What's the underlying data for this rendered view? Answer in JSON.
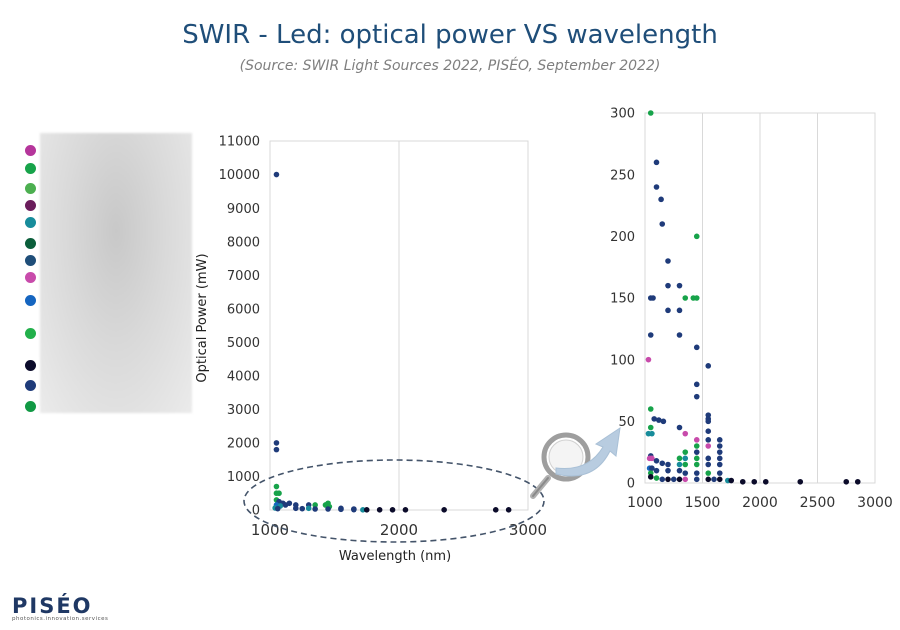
{
  "header": {
    "title": "SWIR - Led: optical power VS wavelength",
    "subtitle": "(Source: SWIR Light Sources 2022, PISÉO, September 2022)"
  },
  "logo": {
    "name": "PISÉO",
    "tagline": "photonics.innovation.services"
  },
  "legend_colors": [
    "#b5359b",
    "#17a34a",
    "#4caf50",
    "#6b1d5c",
    "#178c9b",
    "#0b5e3b",
    "#1f4e79",
    "#c84bab",
    "#1565c0",
    "#22b04b",
    "#0b0b2a",
    "#1f3b7a",
    "#119944"
  ],
  "chart_data": [
    {
      "type": "scatter",
      "title": "",
      "xlabel": "Wavelength (nm)",
      "ylabel": "Optical Power (mW)",
      "xlim": [
        1000,
        3000
      ],
      "ylim": [
        0,
        11000
      ],
      "x_ticks": [
        "1000",
        "2000",
        "3000"
      ],
      "y_ticks": [
        "0",
        "1000",
        "2000",
        "3000",
        "4000",
        "5000",
        "6000",
        "7000",
        "8000",
        "9000",
        "10000",
        "11000"
      ],
      "grid": "vertical",
      "points": [
        {
          "x": 1050,
          "y": 10000,
          "c": "#1f3b7a"
        },
        {
          "x": 1050,
          "y": 2000,
          "c": "#1f3b7a"
        },
        {
          "x": 1050,
          "y": 1800,
          "c": "#1f3b7a"
        },
        {
          "x": 1050,
          "y": 700,
          "c": "#17a34a"
        },
        {
          "x": 1050,
          "y": 500,
          "c": "#17a34a"
        },
        {
          "x": 1070,
          "y": 500,
          "c": "#17a34a"
        },
        {
          "x": 1050,
          "y": 300,
          "c": "#17a34a"
        },
        {
          "x": 1070,
          "y": 250,
          "c": "#1f3b7a"
        },
        {
          "x": 1100,
          "y": 200,
          "c": "#1f3b7a"
        },
        {
          "x": 1050,
          "y": 150,
          "c": "#1565c0"
        },
        {
          "x": 1080,
          "y": 120,
          "c": "#178c9b"
        },
        {
          "x": 1040,
          "y": 60,
          "c": "#178c9b"
        },
        {
          "x": 1060,
          "y": 40,
          "c": "#1f3b7a"
        },
        {
          "x": 1120,
          "y": 150,
          "c": "#1f3b7a"
        },
        {
          "x": 1150,
          "y": 200,
          "c": "#1f3b7a"
        },
        {
          "x": 1200,
          "y": 150,
          "c": "#1f3b7a"
        },
        {
          "x": 1200,
          "y": 50,
          "c": "#1f3b7a"
        },
        {
          "x": 1250,
          "y": 40,
          "c": "#1f3b7a"
        },
        {
          "x": 1300,
          "y": 150,
          "c": "#1f3b7a"
        },
        {
          "x": 1300,
          "y": 50,
          "c": "#178c9b"
        },
        {
          "x": 1350,
          "y": 150,
          "c": "#17a34a"
        },
        {
          "x": 1350,
          "y": 30,
          "c": "#1f3b7a"
        },
        {
          "x": 1450,
          "y": 200,
          "c": "#17a34a"
        },
        {
          "x": 1430,
          "y": 150,
          "c": "#17a34a"
        },
        {
          "x": 1460,
          "y": 100,
          "c": "#17a34a"
        },
        {
          "x": 1450,
          "y": 30,
          "c": "#1f3b7a"
        },
        {
          "x": 1550,
          "y": 50,
          "c": "#1f3b7a"
        },
        {
          "x": 1550,
          "y": 20,
          "c": "#1f3b7a"
        },
        {
          "x": 1650,
          "y": 30,
          "c": "#1f3b7a"
        },
        {
          "x": 1650,
          "y": 10,
          "c": "#1f3b7a"
        },
        {
          "x": 1720,
          "y": 5,
          "c": "#178c9b"
        },
        {
          "x": 1750,
          "y": 5,
          "c": "#0b0b2a"
        },
        {
          "x": 1850,
          "y": 5,
          "c": "#0b0b2a"
        },
        {
          "x": 1950,
          "y": 5,
          "c": "#0b0b2a"
        },
        {
          "x": 2050,
          "y": 5,
          "c": "#0b0b2a"
        },
        {
          "x": 2350,
          "y": 5,
          "c": "#0b0b2a"
        },
        {
          "x": 2750,
          "y": 5,
          "c": "#0b0b2a"
        },
        {
          "x": 2850,
          "y": 5,
          "c": "#0b0b2a"
        }
      ]
    },
    {
      "type": "scatter",
      "title": "",
      "xlabel": "",
      "ylabel": "",
      "xlim": [
        1000,
        3000
      ],
      "ylim": [
        0,
        300
      ],
      "x_ticks": [
        "1000",
        "1500",
        "2000",
        "2500",
        "3000"
      ],
      "y_ticks": [
        "0",
        "50",
        "100",
        "150",
        "200",
        "250",
        "300"
      ],
      "grid": "vertical",
      "points": [
        {
          "x": 1050,
          "y": 300,
          "c": "#17a34a"
        },
        {
          "x": 1100,
          "y": 260,
          "c": "#1f3b7a"
        },
        {
          "x": 1100,
          "y": 240,
          "c": "#1f3b7a"
        },
        {
          "x": 1140,
          "y": 230,
          "c": "#1f3b7a"
        },
        {
          "x": 1150,
          "y": 210,
          "c": "#1f3b7a"
        },
        {
          "x": 1450,
          "y": 200,
          "c": "#17a34a"
        },
        {
          "x": 1200,
          "y": 180,
          "c": "#1f3b7a"
        },
        {
          "x": 1200,
          "y": 160,
          "c": "#1f3b7a"
        },
        {
          "x": 1300,
          "y": 160,
          "c": "#1f3b7a"
        },
        {
          "x": 1050,
          "y": 150,
          "c": "#1f3b7a"
        },
        {
          "x": 1070,
          "y": 150,
          "c": "#1f3b7a"
        },
        {
          "x": 1350,
          "y": 150,
          "c": "#17a34a"
        },
        {
          "x": 1420,
          "y": 150,
          "c": "#17a34a"
        },
        {
          "x": 1450,
          "y": 150,
          "c": "#17a34a"
        },
        {
          "x": 1200,
          "y": 140,
          "c": "#1f3b7a"
        },
        {
          "x": 1300,
          "y": 140,
          "c": "#1f3b7a"
        },
        {
          "x": 1050,
          "y": 120,
          "c": "#1f3b7a"
        },
        {
          "x": 1300,
          "y": 120,
          "c": "#1f3b7a"
        },
        {
          "x": 1450,
          "y": 110,
          "c": "#1f3b7a"
        },
        {
          "x": 1030,
          "y": 100,
          "c": "#c84bab"
        },
        {
          "x": 1550,
          "y": 95,
          "c": "#1f3b7a"
        },
        {
          "x": 1450,
          "y": 80,
          "c": "#1f3b7a"
        },
        {
          "x": 1450,
          "y": 70,
          "c": "#1f3b7a"
        },
        {
          "x": 1050,
          "y": 60,
          "c": "#17a34a"
        },
        {
          "x": 1550,
          "y": 55,
          "c": "#1f3b7a"
        },
        {
          "x": 1550,
          "y": 52,
          "c": "#1f3b7a"
        },
        {
          "x": 1080,
          "y": 52,
          "c": "#1f3b7a"
        },
        {
          "x": 1120,
          "y": 51,
          "c": "#1f3b7a"
        },
        {
          "x": 1160,
          "y": 50,
          "c": "#1f3b7a"
        },
        {
          "x": 1550,
          "y": 50,
          "c": "#1f3b7a"
        },
        {
          "x": 1050,
          "y": 45,
          "c": "#17a34a"
        },
        {
          "x": 1300,
          "y": 45,
          "c": "#1f3b7a"
        },
        {
          "x": 1550,
          "y": 42,
          "c": "#1f3b7a"
        },
        {
          "x": 1030,
          "y": 40,
          "c": "#178c9b"
        },
        {
          "x": 1060,
          "y": 40,
          "c": "#178c9b"
        },
        {
          "x": 1350,
          "y": 40,
          "c": "#c84bab"
        },
        {
          "x": 1450,
          "y": 35,
          "c": "#c84bab"
        },
        {
          "x": 1550,
          "y": 35,
          "c": "#1f3b7a"
        },
        {
          "x": 1650,
          "y": 35,
          "c": "#1f3b7a"
        },
        {
          "x": 1450,
          "y": 30,
          "c": "#17a34a"
        },
        {
          "x": 1550,
          "y": 30,
          "c": "#c84bab"
        },
        {
          "x": 1650,
          "y": 30,
          "c": "#1f3b7a"
        },
        {
          "x": 1350,
          "y": 25,
          "c": "#17a34a"
        },
        {
          "x": 1450,
          "y": 25,
          "c": "#1f3b7a"
        },
        {
          "x": 1650,
          "y": 25,
          "c": "#1f3b7a"
        },
        {
          "x": 1050,
          "y": 22,
          "c": "#1f3b7a"
        },
        {
          "x": 1040,
          "y": 20,
          "c": "#c84bab"
        },
        {
          "x": 1060,
          "y": 20,
          "c": "#c84bab"
        },
        {
          "x": 1300,
          "y": 20,
          "c": "#17a34a"
        },
        {
          "x": 1350,
          "y": 20,
          "c": "#178c9b"
        },
        {
          "x": 1450,
          "y": 20,
          "c": "#17a34a"
        },
        {
          "x": 1550,
          "y": 20,
          "c": "#1f3b7a"
        },
        {
          "x": 1650,
          "y": 20,
          "c": "#1f3b7a"
        },
        {
          "x": 1100,
          "y": 18,
          "c": "#1f3b7a"
        },
        {
          "x": 1150,
          "y": 16,
          "c": "#1f3b7a"
        },
        {
          "x": 1200,
          "y": 15,
          "c": "#1f3b7a"
        },
        {
          "x": 1300,
          "y": 15,
          "c": "#178c9b"
        },
        {
          "x": 1350,
          "y": 15,
          "c": "#17a34a"
        },
        {
          "x": 1450,
          "y": 15,
          "c": "#17a34a"
        },
        {
          "x": 1550,
          "y": 15,
          "c": "#1f3b7a"
        },
        {
          "x": 1650,
          "y": 15,
          "c": "#1f3b7a"
        },
        {
          "x": 1040,
          "y": 12,
          "c": "#1565c0"
        },
        {
          "x": 1060,
          "y": 12,
          "c": "#1f3b7a"
        },
        {
          "x": 1100,
          "y": 10,
          "c": "#1f3b7a"
        },
        {
          "x": 1200,
          "y": 10,
          "c": "#1f3b7a"
        },
        {
          "x": 1300,
          "y": 10,
          "c": "#1f3b7a"
        },
        {
          "x": 1050,
          "y": 8,
          "c": "#17a34a"
        },
        {
          "x": 1350,
          "y": 8,
          "c": "#1f3b7a"
        },
        {
          "x": 1450,
          "y": 8,
          "c": "#1f3b7a"
        },
        {
          "x": 1550,
          "y": 8,
          "c": "#17a34a"
        },
        {
          "x": 1650,
          "y": 8,
          "c": "#1f3b7a"
        },
        {
          "x": 1050,
          "y": 5,
          "c": "#0b0b2a"
        },
        {
          "x": 1100,
          "y": 4,
          "c": "#17a34a"
        },
        {
          "x": 1150,
          "y": 3,
          "c": "#1f3b7a"
        },
        {
          "x": 1200,
          "y": 3,
          "c": "#0b0b2a"
        },
        {
          "x": 1250,
          "y": 3,
          "c": "#1f3b7a"
        },
        {
          "x": 1300,
          "y": 3,
          "c": "#0b0b2a"
        },
        {
          "x": 1350,
          "y": 3,
          "c": "#c84bab"
        },
        {
          "x": 1450,
          "y": 3,
          "c": "#1f3b7a"
        },
        {
          "x": 1550,
          "y": 3,
          "c": "#0b0b2a"
        },
        {
          "x": 1600,
          "y": 3,
          "c": "#1f3b7a"
        },
        {
          "x": 1650,
          "y": 3,
          "c": "#0b0b2a"
        },
        {
          "x": 1720,
          "y": 2,
          "c": "#178c9b"
        },
        {
          "x": 1750,
          "y": 2,
          "c": "#0b0b2a"
        },
        {
          "x": 1850,
          "y": 1,
          "c": "#0b0b2a"
        },
        {
          "x": 1950,
          "y": 1,
          "c": "#0b0b2a"
        },
        {
          "x": 2050,
          "y": 1,
          "c": "#0b0b2a"
        },
        {
          "x": 2350,
          "y": 1,
          "c": "#0b0b2a"
        },
        {
          "x": 2750,
          "y": 1,
          "c": "#0b0b2a"
        },
        {
          "x": 2850,
          "y": 1,
          "c": "#0b0b2a"
        }
      ]
    }
  ]
}
